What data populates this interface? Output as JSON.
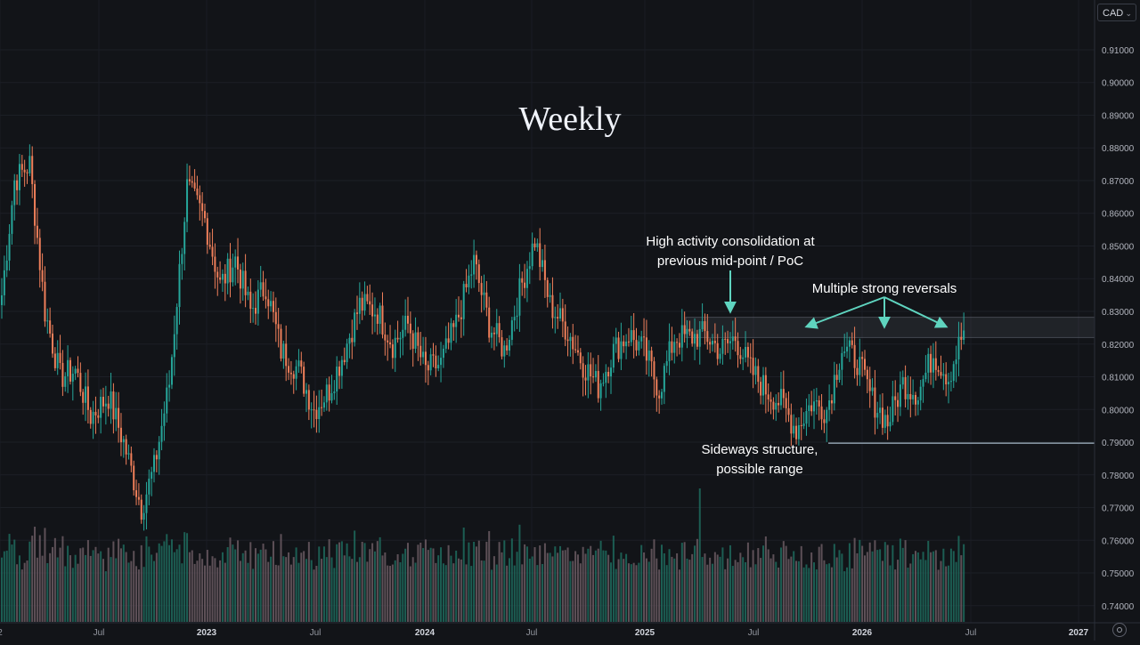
{
  "chart_data": {
    "type": "candlestick",
    "title": "Weekly",
    "currency_label": "CAD",
    "y_axis": {
      "ylim": [
        0.7375,
        0.9225
      ],
      "ticks": [
        "0.91000",
        "0.90000",
        "0.89000",
        "0.88000",
        "0.87000",
        "0.86000",
        "0.85000",
        "0.84000",
        "0.83000",
        "0.82000",
        "0.81000",
        "0.80000",
        "0.79000",
        "0.78000",
        "0.77000",
        "0.76000",
        "0.75000",
        "0.74000"
      ]
    },
    "x_axis": {
      "ticks": [
        "2",
        "Jul",
        "2023",
        "Jul",
        "2024",
        "Jul",
        "2025",
        "Jul",
        "2026",
        "Jul",
        "2027"
      ]
    },
    "grid": true,
    "colors": {
      "up": "#26a69a",
      "down": "#ef7f5a",
      "volume_up": "#1f6b5e",
      "volume_down": "#6b5a63",
      "annotation": "#5fd4bf",
      "background": "#121418"
    },
    "zones": [
      {
        "name": "consolidation-zone",
        "y_range": [
          0.822,
          0.8282
        ]
      },
      {
        "name": "range-support",
        "y": 0.7897
      }
    ],
    "annotations": [
      {
        "id": "consolidation",
        "lines": [
          "High activity consolidation at",
          "previous mid-point / PoC"
        ]
      },
      {
        "id": "reversals",
        "lines": [
          "Multiple strong reversals"
        ]
      },
      {
        "id": "sideways",
        "lines": [
          "Sideways structure,",
          "possible range"
        ]
      }
    ],
    "price_path": [
      [
        0,
        0.835
      ],
      [
        5,
        0.87
      ],
      [
        11,
        0.875
      ],
      [
        17,
        0.83
      ],
      [
        23,
        0.81
      ],
      [
        29,
        0.812
      ],
      [
        35,
        0.798
      ],
      [
        42,
        0.804
      ],
      [
        48,
        0.79
      ],
      [
        55,
        0.77
      ],
      [
        60,
        0.782
      ],
      [
        66,
        0.808
      ],
      [
        73,
        0.868
      ],
      [
        80,
        0.858
      ],
      [
        86,
        0.838
      ],
      [
        92,
        0.846
      ],
      [
        98,
        0.83
      ],
      [
        104,
        0.838
      ],
      [
        110,
        0.818
      ],
      [
        117,
        0.812
      ],
      [
        123,
        0.8
      ],
      [
        129,
        0.806
      ],
      [
        135,
        0.818
      ],
      [
        141,
        0.832
      ],
      [
        148,
        0.83
      ],
      [
        154,
        0.82
      ],
      [
        160,
        0.826
      ],
      [
        167,
        0.812
      ],
      [
        173,
        0.814
      ],
      [
        179,
        0.826
      ],
      [
        186,
        0.845
      ],
      [
        192,
        0.826
      ],
      [
        198,
        0.818
      ],
      [
        204,
        0.836
      ],
      [
        210,
        0.852
      ],
      [
        216,
        0.832
      ],
      [
        223,
        0.824
      ],
      [
        229,
        0.814
      ],
      [
        235,
        0.807
      ],
      [
        241,
        0.818
      ],
      [
        247,
        0.823
      ],
      [
        253,
        0.818
      ],
      [
        259,
        0.806
      ],
      [
        265,
        0.822
      ],
      [
        271,
        0.822
      ],
      [
        277,
        0.823
      ],
      [
        283,
        0.818
      ],
      [
        289,
        0.822
      ],
      [
        295,
        0.812
      ],
      [
        301,
        0.806
      ],
      [
        307,
        0.802
      ],
      [
        313,
        0.794
      ],
      [
        319,
        0.802
      ],
      [
        325,
        0.8
      ],
      [
        331,
        0.819
      ],
      [
        337,
        0.815
      ],
      [
        343,
        0.803
      ],
      [
        349,
        0.796
      ],
      [
        355,
        0.808
      ],
      [
        361,
        0.805
      ],
      [
        367,
        0.817
      ],
      [
        373,
        0.81
      ],
      [
        379,
        0.824
      ]
    ]
  }
}
